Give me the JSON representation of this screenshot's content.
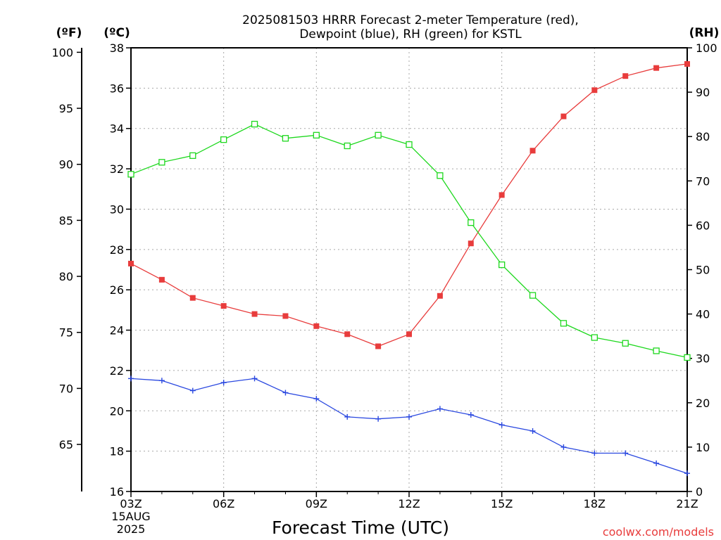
{
  "chart_data": {
    "type": "line",
    "title": "2025081503 HRRR Forecast 2-meter Temperature (red),",
    "subtitle": "Dewpoint (blue), RH (green) for KSTL",
    "xlabel": "Forecast Time (UTC)",
    "credit": "coolwx.com/models",
    "units": {
      "fahrenheit": "(ºF)",
      "celsius": "(ºC)",
      "rh": "(RH)"
    },
    "x": [
      "03Z",
      "04Z",
      "05Z",
      "06Z",
      "07Z",
      "08Z",
      "09Z",
      "10Z",
      "11Z",
      "12Z",
      "13Z",
      "14Z",
      "15Z",
      "16Z",
      "17Z",
      "18Z",
      "19Z",
      "20Z",
      "21Z"
    ],
    "x_ticks": [
      {
        "label": "03Z",
        "sub": [
          "15AUG",
          "2025"
        ]
      },
      {
        "label": "06Z"
      },
      {
        "label": "09Z"
      },
      {
        "label": "12Z"
      },
      {
        "label": "15Z"
      },
      {
        "label": "18Z"
      },
      {
        "label": "21Z"
      }
    ],
    "celsius_axis": {
      "range": [
        16,
        38
      ],
      "ticks": [
        "16",
        "18",
        "20",
        "22",
        "24",
        "26",
        "28",
        "30",
        "32",
        "34",
        "36",
        "38"
      ]
    },
    "fahrenheit_axis": {
      "ticks": [
        "65",
        "70",
        "75",
        "80",
        "85",
        "90",
        "95",
        "100"
      ]
    },
    "rh_axis": {
      "range": [
        0,
        100
      ],
      "ticks": [
        "0",
        "10",
        "20",
        "30",
        "40",
        "50",
        "60",
        "70",
        "80",
        "90",
        "100"
      ]
    },
    "grid": true,
    "series": [
      {
        "name": "Temperature",
        "color": "#e83c3c",
        "marker": "filled-square",
        "axis": "celsius",
        "values": [
          27.3,
          26.5,
          25.6,
          25.2,
          24.8,
          24.7,
          24.2,
          23.8,
          23.2,
          23.8,
          25.7,
          28.3,
          30.7,
          32.9,
          34.6,
          35.9,
          36.6,
          37.0,
          37.2
        ]
      },
      {
        "name": "Dewpoint",
        "color": "#2a48e0",
        "marker": "plus",
        "axis": "celsius",
        "values": [
          21.6,
          21.5,
          21.0,
          21.4,
          21.6,
          20.9,
          20.6,
          19.7,
          19.6,
          19.7,
          20.1,
          19.8,
          19.3,
          19.0,
          18.2,
          17.9,
          17.9,
          17.4,
          16.9
        ]
      },
      {
        "name": "RH",
        "color": "#1ed81e",
        "marker": "open-square",
        "axis": "rh",
        "values": [
          71.5,
          74.2,
          75.7,
          79.3,
          82.8,
          79.6,
          80.3,
          77.9,
          80.3,
          78.2,
          71.2,
          60.6,
          51.1,
          44.2,
          37.9,
          34.7,
          33.4,
          31.7,
          30.2
        ]
      }
    ]
  }
}
